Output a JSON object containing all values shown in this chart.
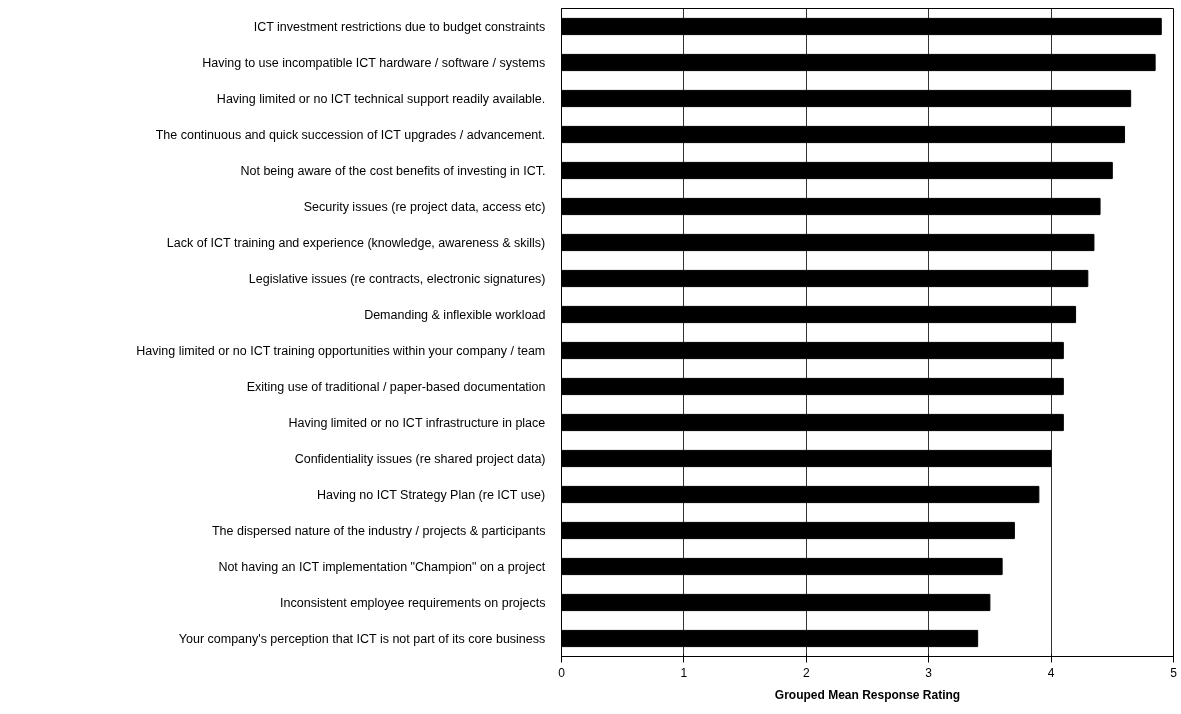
{
  "chart_data": {
    "type": "bar",
    "orientation": "horizontal",
    "xlabel": "Grouped Mean Response Rating",
    "categories": [
      "ICT investment restrictions due to budget constraints",
      "Having to use incompatible ICT hardware / software / systems",
      "Having limited or no ICT technical support readily available.",
      "The continuous and quick succession of ICT upgrades / advancement.",
      "Not being aware of the cost benefits of investing in ICT.",
      "Security issues (re project data, access etc)",
      "Lack of ICT training and experience (knowledge, awareness & skills)",
      "Legislative issues (re contracts, electronic signatures)",
      "Demanding & inflexible workload",
      "Having limited or no ICT training opportunities within your company / team",
      "Exiting use of traditional / paper-based documentation",
      "Having limited or no ICT infrastructure in place",
      "Confidentiality issues (re shared project data)",
      "Having no ICT Strategy Plan (re ICT use)",
      "The dispersed nature of the industry / projects & participants",
      "Not having an ICT implementation \"Champion\" on a project",
      "Inconsistent employee requirements on projects",
      "Your company's perception that ICT is not part of its core business"
    ],
    "values": [
      4.9,
      4.85,
      4.65,
      4.6,
      4.5,
      4.4,
      4.35,
      4.3,
      4.2,
      4.1,
      4.1,
      4.1,
      4.0,
      3.9,
      3.7,
      3.6,
      3.5,
      3.4
    ],
    "color": "#000000",
    "xlim": [
      0,
      5
    ],
    "xticks": [
      0,
      1,
      2,
      3,
      4,
      5
    ],
    "grid": "x"
  }
}
